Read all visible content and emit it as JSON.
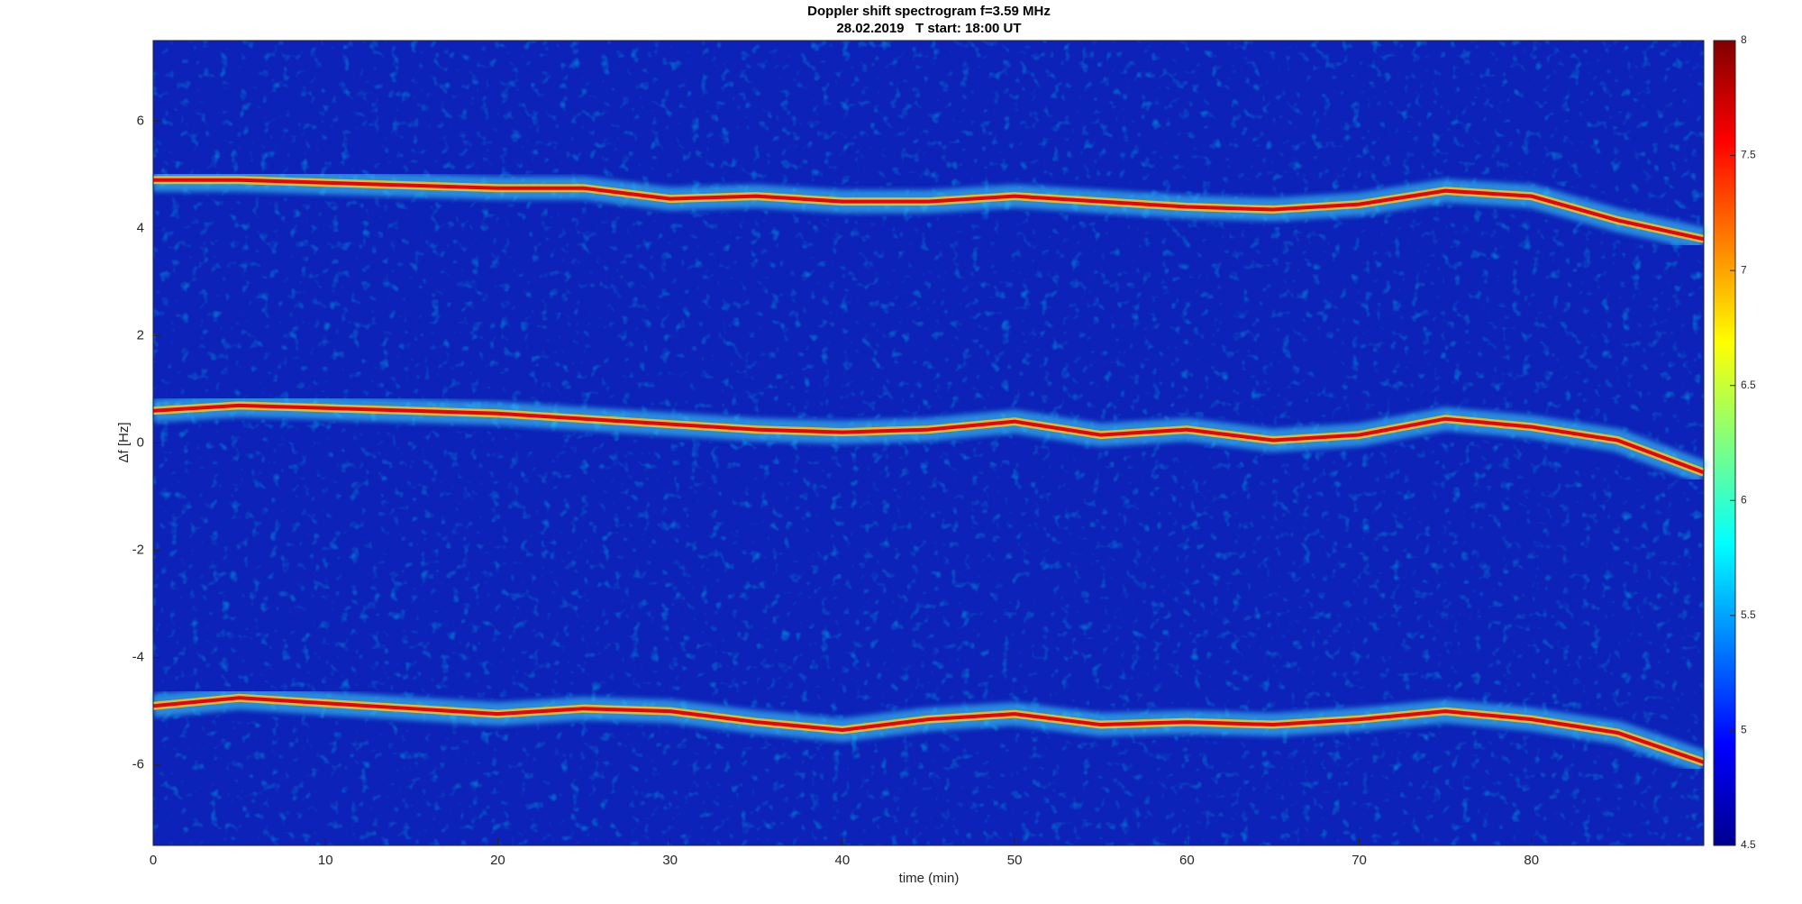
{
  "chart_data": {
    "type": "spectrogram",
    "title": "Doppler shift spectrogram f=3.59 MHz",
    "subtitle": "28.02.2019   T start: 18:00 UT",
    "x_label": "time (min)",
    "y_label": "Δf [Hz]",
    "x": [
      0,
      5,
      10,
      15,
      20,
      25,
      30,
      35,
      40,
      45,
      50,
      55,
      60,
      65,
      70,
      75,
      80,
      85,
      90
    ],
    "series": [
      {
        "color": "#e8001a",
        "values": [
          4.9,
          4.9,
          4.85,
          4.8,
          4.75,
          4.75,
          4.55,
          4.6,
          4.5,
          4.5,
          4.6,
          4.5,
          4.4,
          4.35,
          4.45,
          4.7,
          4.6,
          4.15,
          3.8
        ]
      },
      {
        "color": "#e8001a",
        "values": [
          0.6,
          0.7,
          0.65,
          0.6,
          0.55,
          0.45,
          0.35,
          0.25,
          0.2,
          0.25,
          0.4,
          0.15,
          0.25,
          0.05,
          0.15,
          0.45,
          0.3,
          0.05,
          -0.55
        ]
      },
      {
        "color": "#e8001a",
        "values": [
          -4.9,
          -4.75,
          -4.85,
          -4.95,
          -5.05,
          -4.95,
          -5.0,
          -5.2,
          -5.35,
          -5.15,
          -5.05,
          -5.25,
          -5.2,
          -5.25,
          -5.15,
          -5.0,
          -5.15,
          -5.4,
          -5.95
        ]
      }
    ],
    "xlim": [
      0,
      90
    ],
    "xticks": [
      0,
      10,
      20,
      30,
      40,
      50,
      60,
      70,
      80
    ],
    "ylim": [
      -7.5,
      7.5
    ],
    "yticks": [
      -6,
      -4,
      -2,
      0,
      2,
      4,
      6
    ],
    "clim": [
      4.5,
      8
    ],
    "cticks": [
      4.5,
      5,
      5.5,
      6,
      6.5,
      7,
      7.5,
      8
    ],
    "colormap": "jet",
    "background": "#0c22b8"
  }
}
